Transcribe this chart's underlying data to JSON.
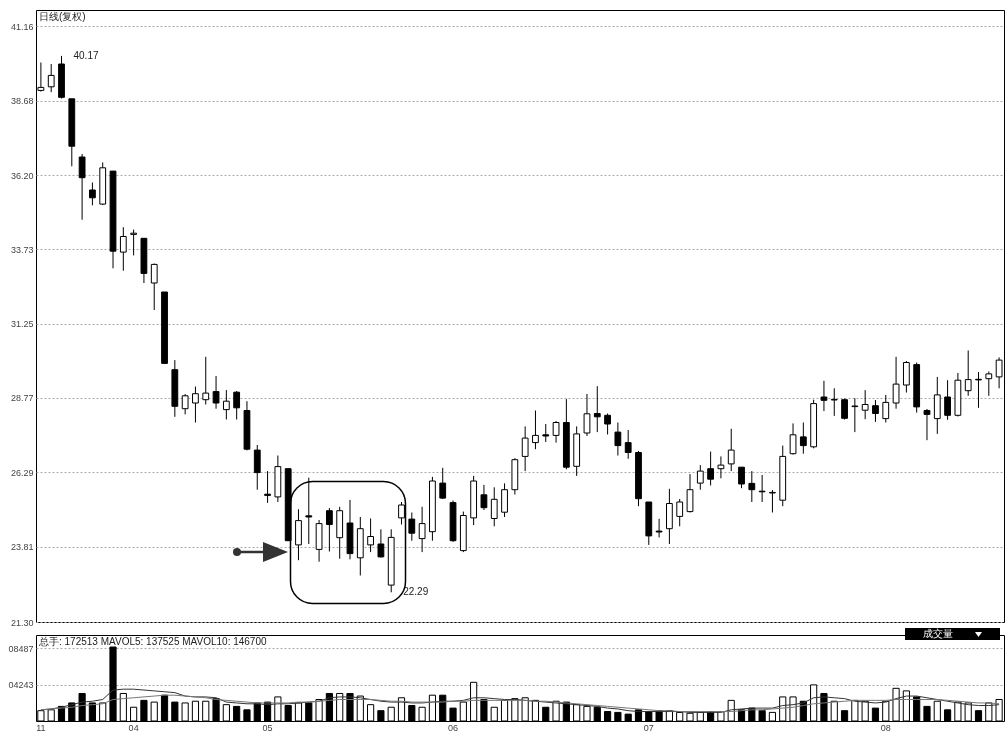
{
  "chart_data": [
    {
      "type": "candlestick",
      "title": "日线(复权)",
      "color": "#000000",
      "ylim": [
        21.3,
        41.7
      ],
      "yticks": [
        {
          "value": 21.3,
          "label": "21.30"
        },
        23.81,
        26.29,
        28.77,
        31.25,
        33.73,
        {
          "value": 36.2,
          "label": "36.20"
        },
        38.68,
        41.16
      ],
      "grid": "y",
      "tick_labels": "y",
      "categories": [
        "11",
        null,
        null,
        null,
        null,
        null,
        null,
        null,
        null,
        "04",
        null,
        null,
        null,
        null,
        null,
        null,
        null,
        null,
        null,
        null,
        null,
        null,
        "05",
        null,
        null,
        null,
        null,
        null,
        null,
        null,
        null,
        null,
        null,
        null,
        null,
        null,
        null,
        null,
        null,
        null,
        "06",
        null,
        null,
        null,
        null,
        null,
        null,
        null,
        null,
        null,
        null,
        null,
        null,
        null,
        null,
        null,
        null,
        null,
        null,
        "07",
        null,
        null,
        null,
        null,
        null,
        null,
        null,
        null,
        null,
        null,
        null,
        null,
        null,
        null,
        null,
        null,
        null,
        null,
        null,
        null,
        null,
        null,
        "08",
        null,
        null,
        null,
        null,
        null,
        null,
        null,
        null,
        null,
        null,
        null
      ],
      "ohlc": [
        [
          39.02,
          39.95,
          38.98,
          39.12
        ],
        [
          39.14,
          39.9,
          38.96,
          39.52
        ],
        [
          39.9,
          40.17,
          38.75,
          38.79
        ],
        [
          38.74,
          38.74,
          36.49,
          37.16
        ],
        [
          36.8,
          36.9,
          34.71,
          36.11
        ],
        [
          35.7,
          35.95,
          35.19,
          35.44
        ],
        [
          35.23,
          36.62,
          35.2,
          36.44
        ],
        [
          36.33,
          36.33,
          33.09,
          33.66
        ],
        [
          33.63,
          34.46,
          33.01,
          34.15
        ],
        [
          34.22,
          34.38,
          33.52,
          34.26
        ],
        [
          34.09,
          34.1,
          32.6,
          32.92
        ],
        [
          32.6,
          33.25,
          31.7,
          33.22
        ],
        [
          32.3,
          32.3,
          29.92,
          29.92
        ],
        [
          29.71,
          30.03,
          28.14,
          28.49
        ],
        [
          28.41,
          28.9,
          28.22,
          28.84
        ],
        [
          28.6,
          29.15,
          27.95,
          28.91
        ],
        [
          28.71,
          30.14,
          28.55,
          28.93
        ],
        [
          28.98,
          29.5,
          28.41,
          28.6
        ],
        [
          28.38,
          29.03,
          28.05,
          28.66
        ],
        [
          28.96,
          29.0,
          28.05,
          28.44
        ],
        [
          28.35,
          28.66,
          27.02,
          27.06
        ],
        [
          27.03,
          27.2,
          25.71,
          26.28
        ],
        [
          25.56,
          26.33,
          25.27,
          25.52
        ],
        [
          25.47,
          26.85,
          25.3,
          26.48
        ],
        [
          26.41,
          26.41,
          24.0,
          24.01
        ],
        [
          23.87,
          25.06,
          23.36,
          24.68
        ],
        [
          24.84,
          26.11,
          23.9,
          24.8
        ],
        [
          23.72,
          24.7,
          23.31,
          24.58
        ],
        [
          25.01,
          25.1,
          23.65,
          24.55
        ],
        [
          24.11,
          25.14,
          23.41,
          25.01
        ],
        [
          24.6,
          25.37,
          23.39,
          23.58
        ],
        [
          23.44,
          24.8,
          22.85,
          24.41
        ],
        [
          23.87,
          24.75,
          23.63,
          24.15
        ],
        [
          23.9,
          24.39,
          23.45,
          23.47
        ],
        [
          22.53,
          24.39,
          22.29,
          24.12
        ],
        [
          24.77,
          25.3,
          24.55,
          25.2
        ],
        [
          24.73,
          24.95,
          24.01,
          24.26
        ],
        [
          24.08,
          25.14,
          23.63,
          24.58
        ],
        [
          24.31,
          26.14,
          24.01,
          26.0
        ],
        [
          25.93,
          26.44,
          25.4,
          25.43
        ],
        [
          25.28,
          25.35,
          23.97,
          24.01
        ],
        [
          23.68,
          24.98,
          23.63,
          24.85
        ],
        [
          24.77,
          26.17,
          24.53,
          26.0
        ],
        [
          25.54,
          25.87,
          25.03,
          25.11
        ],
        [
          24.75,
          25.79,
          24.49,
          25.39
        ],
        [
          24.96,
          25.92,
          24.8,
          25.71
        ],
        [
          25.71,
          26.76,
          25.55,
          26.71
        ],
        [
          26.82,
          27.82,
          26.33,
          27.43
        ],
        [
          27.28,
          28.35,
          27.06,
          27.52
        ],
        [
          27.54,
          27.9,
          27.3,
          27.5
        ],
        [
          27.52,
          28.0,
          27.28,
          27.95
        ],
        [
          27.95,
          28.73,
          26.39,
          26.46
        ],
        [
          26.49,
          27.82,
          26.17,
          27.57
        ],
        [
          27.6,
          28.9,
          27.5,
          28.24
        ],
        [
          28.25,
          29.16,
          27.63,
          28.14
        ],
        [
          28.19,
          28.25,
          27.55,
          27.9
        ],
        [
          27.63,
          27.95,
          26.85,
          27.18
        ],
        [
          27.28,
          27.7,
          26.74,
          26.95
        ],
        [
          26.95,
          27.0,
          25.16,
          25.41
        ],
        [
          25.3,
          25.3,
          23.87,
          24.17
        ],
        [
          24.33,
          24.74,
          24.12,
          24.3
        ],
        [
          24.41,
          25.74,
          23.9,
          25.25
        ],
        [
          24.82,
          25.4,
          24.49,
          25.3
        ],
        [
          24.98,
          26.23,
          24.95,
          25.71
        ],
        [
          25.93,
          26.53,
          25.71,
          26.33
        ],
        [
          26.41,
          26.98,
          25.85,
          26.06
        ],
        [
          26.41,
          26.82,
          26.09,
          26.53
        ],
        [
          26.57,
          27.74,
          26.33,
          27.03
        ],
        [
          26.46,
          26.46,
          25.76,
          25.9
        ],
        [
          25.92,
          26.33,
          25.3,
          25.71
        ],
        [
          25.66,
          26.2,
          25.3,
          25.64
        ],
        [
          25.6,
          25.7,
          24.95,
          25.62
        ],
        [
          25.36,
          27.18,
          25.16,
          26.82
        ],
        [
          26.91,
          27.92,
          26.88,
          27.54
        ],
        [
          27.47,
          27.95,
          26.91,
          27.18
        ],
        [
          27.14,
          28.71,
          27.09,
          28.58
        ],
        [
          28.8,
          29.34,
          28.33,
          28.69
        ],
        [
          28.7,
          29.09,
          28.17,
          28.72
        ],
        [
          28.71,
          28.75,
          28.05,
          28.09
        ],
        [
          28.48,
          28.76,
          27.63,
          28.5
        ],
        [
          28.36,
          29.03,
          28.06,
          28.55
        ],
        [
          28.51,
          28.7,
          27.97,
          28.25
        ],
        [
          28.08,
          28.87,
          27.95,
          28.62
        ],
        [
          28.6,
          30.14,
          28.41,
          29.23
        ],
        [
          29.2,
          30.0,
          28.95,
          29.95
        ],
        [
          29.88,
          29.95,
          28.28,
          28.47
        ],
        [
          28.35,
          28.4,
          27.36,
          28.22
        ],
        [
          28.08,
          29.47,
          27.57,
          28.87
        ],
        [
          28.8,
          29.36,
          28.04,
          28.19
        ],
        [
          28.19,
          29.6,
          28.15,
          29.36
        ],
        [
          29.01,
          30.35,
          28.84,
          29.38
        ],
        [
          29.39,
          29.63,
          28.44,
          29.37
        ],
        [
          29.41,
          29.65,
          28.84,
          29.57
        ],
        [
          29.47,
          30.12,
          29.09,
          30.03
        ]
      ],
      "annotations": [
        "40.17",
        "22.29"
      ]
    },
    {
      "type": "bar",
      "title": "总手: 172513 MAVOL5: 137525 MAVOL10: 146700",
      "ylim": [
        0,
        10000
      ],
      "yticks": [
        {
          "value": 4243,
          "label": "04243"
        },
        {
          "value": 8487,
          "label": "08487"
        }
      ],
      "grid": "y",
      "categories": [
        "11",
        null,
        null,
        null,
        null,
        null,
        null,
        null,
        null,
        "04",
        null,
        null,
        null,
        null,
        null,
        null,
        null,
        null,
        null,
        null,
        null,
        null,
        "05",
        null,
        null,
        null,
        null,
        null,
        null,
        null,
        null,
        null,
        null,
        null,
        null,
        null,
        null,
        null,
        null,
        null,
        "06",
        null,
        null,
        null,
        null,
        null,
        null,
        null,
        null,
        null,
        null,
        null,
        null,
        null,
        null,
        null,
        null,
        null,
        null,
        "07",
        null,
        null,
        null,
        null,
        null,
        null,
        null,
        null,
        null,
        null,
        null,
        null,
        null,
        null,
        null,
        null,
        null,
        null,
        null,
        null,
        null,
        null,
        "08",
        null,
        null,
        null,
        null,
        null,
        null,
        null,
        null,
        null,
        null,
        null
      ],
      "annotations": [
        "成交量"
      ],
      "series": [
        {
          "type": "bar",
          "values": [
            1200,
            1300,
            1700,
            2100,
            3200,
            2100,
            2100,
            8600,
            3200,
            1600,
            2400,
            2200,
            3000,
            2200,
            2100,
            2300,
            2300,
            2600,
            1900,
            1700,
            1300,
            2100,
            2200,
            2800,
            1800,
            2100,
            2100,
            2500,
            3200,
            3200,
            3200,
            2900,
            1900,
            1200,
            1600,
            2700,
            1800,
            1600,
            3000,
            3000,
            1500,
            2200,
            4500,
            2500,
            1600,
            2400,
            2600,
            2700,
            2400,
            1600,
            2300,
            2200,
            1900,
            1700,
            1600,
            1100,
            1000,
            800,
            1300,
            1100,
            1200,
            1200,
            1000,
            900,
            1000,
            1100,
            1100,
            2400,
            1300,
            1500,
            1200,
            1000,
            2800,
            2800,
            2300,
            4200,
            3200,
            2300,
            1200,
            2400,
            2300,
            1500,
            2300,
            3800,
            3500,
            2800,
            1700,
            2300,
            1300,
            2200,
            2100,
            1200,
            2100,
            2500
          ],
          "colors": [
            "#ffffff",
            "#ffffff",
            "#000000",
            "#000000",
            "#000000",
            "#000000",
            "#ffffff",
            "#000000",
            "#ffffff",
            "#ffffff",
            "#000000",
            "#ffffff",
            "#000000",
            "#000000",
            "#ffffff",
            "#ffffff",
            "#ffffff",
            "#000000",
            "#ffffff",
            "#000000",
            "#000000",
            "#000000",
            "#000000",
            "#ffffff",
            "#000000",
            "#ffffff",
            "#000000",
            "#ffffff",
            "#000000",
            "#ffffff",
            "#000000",
            "#ffffff",
            "#ffffff",
            "#000000",
            "#ffffff",
            "#ffffff",
            "#000000",
            "#ffffff",
            "#ffffff",
            "#000000",
            "#000000",
            "#ffffff",
            "#ffffff",
            "#000000",
            "#ffffff",
            "#ffffff",
            "#ffffff",
            "#ffffff",
            "#ffffff",
            "#000000",
            "#ffffff",
            "#000000",
            "#ffffff",
            "#ffffff",
            "#000000",
            "#000000",
            "#000000",
            "#000000",
            "#000000",
            "#000000",
            "#000000",
            "#ffffff",
            "#ffffff",
            "#ffffff",
            "#ffffff",
            "#000000",
            "#ffffff",
            "#ffffff",
            "#000000",
            "#000000",
            "#000000",
            "#ffffff",
            "#ffffff",
            "#ffffff",
            "#000000",
            "#ffffff",
            "#000000",
            "#ffffff",
            "#000000",
            "#ffffff",
            "#ffffff",
            "#000000",
            "#ffffff",
            "#ffffff",
            "#ffffff",
            "#000000",
            "#000000",
            "#ffffff",
            "#000000",
            "#ffffff",
            "#ffffff",
            "#000000",
            "#ffffff",
            "#ffffff"
          ]
        },
        {
          "type": "line",
          "color": "#333333",
          "values": [
            1300,
            1400,
            1600,
            1900,
            2200,
            2300,
            2500,
            3600,
            3700,
            3700,
            3600,
            3500,
            3400,
            3300,
            2900,
            2800,
            2800,
            2700,
            2200,
            2100,
            2000,
            2000,
            1900,
            2000,
            2000,
            2100,
            2200,
            2300,
            2700,
            2800,
            2800,
            2700,
            2500,
            2300,
            2200,
            2200,
            2100,
            2100,
            2200,
            2300,
            2300,
            2400,
            2700,
            2700,
            2600,
            2500,
            2500,
            2400,
            2300,
            2200,
            2100,
            2000,
            1900,
            1800,
            1700,
            1500,
            1400,
            1200,
            1100,
            1100,
            1100,
            1100,
            1100,
            1000,
            1000,
            1000,
            1000,
            1300,
            1400,
            1500,
            1500,
            1500,
            1800,
            1900,
            2100,
            2700,
            2800,
            2700,
            2600,
            2300,
            2200,
            2100,
            2200,
            2600,
            2900,
            2900,
            2700,
            2500,
            2300,
            2100,
            1900,
            1800,
            1800,
            1900
          ]
        },
        {
          "type": "line",
          "color": "#777777",
          "values": [
            1300,
            1400,
            1500,
            1600,
            1800,
            1900,
            2000,
            2500,
            2600,
            2700,
            2800,
            2900,
            3000,
            3000,
            2900,
            2800,
            2700,
            2500,
            2400,
            2300,
            2200,
            2100,
            2100,
            2100,
            2100,
            2200,
            2200,
            2300,
            2400,
            2500,
            2500,
            2500,
            2500,
            2400,
            2300,
            2300,
            2200,
            2200,
            2200,
            2200,
            2300,
            2300,
            2400,
            2400,
            2400,
            2400,
            2400,
            2400,
            2300,
            2300,
            2200,
            2100,
            2000,
            1900,
            1800,
            1700,
            1600,
            1500,
            1400,
            1300,
            1200,
            1200,
            1100,
            1100,
            1100,
            1100,
            1100,
            1100,
            1200,
            1300,
            1300,
            1400,
            1500,
            1600,
            1800,
            2000,
            2100,
            2200,
            2300,
            2400,
            2400,
            2400,
            2400,
            2500,
            2500,
            2500,
            2500,
            2500,
            2400,
            2300,
            2200,
            2100,
            2100,
            2000
          ]
        }
      ]
    }
  ]
}
